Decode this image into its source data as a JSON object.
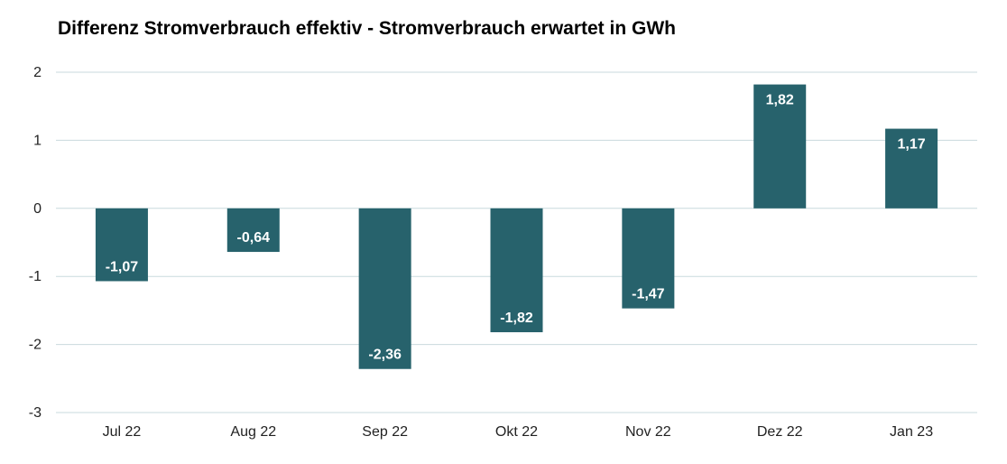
{
  "chart_data": {
    "type": "bar",
    "title": "Differenz Stromverbrauch effektiv - Stromverbrauch erwartet in GWh",
    "categories": [
      "Jul 22",
      "Aug 22",
      "Sep 22",
      "Okt 22",
      "Nov 22",
      "Dez 22",
      "Jan 23"
    ],
    "values": [
      -1.07,
      -0.64,
      -2.36,
      -1.82,
      -1.47,
      1.82,
      1.17
    ],
    "data_labels": [
      "-1,07",
      "-0,64",
      "-2,36",
      "-1,82",
      "-1,47",
      "1,82",
      "1,17"
    ],
    "xlabel": "",
    "ylabel": "",
    "ylim": [
      -3,
      2
    ],
    "yticks": [
      2,
      1,
      0,
      -1,
      -2,
      -3
    ],
    "ytick_labels": [
      "2",
      "1",
      "0",
      "-1",
      "-2",
      "-3"
    ],
    "grid": true,
    "legend": "none",
    "colors": {
      "bar": "#27626c",
      "grid": "#c9dadd",
      "label": "#ffffff"
    }
  }
}
